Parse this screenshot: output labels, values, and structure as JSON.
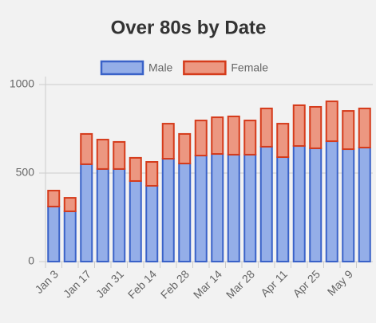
{
  "chart_data": {
    "type": "stacked_bar",
    "title": "Over 80s by Date",
    "categories": [
      "Jan 3",
      null,
      "Jan 17",
      null,
      "Jan 31",
      null,
      "Feb 14",
      null,
      "Feb 28",
      null,
      "Mar 14",
      null,
      "Mar 28",
      null,
      "Apr 11",
      null,
      "Apr 25",
      null,
      "May 9",
      null
    ],
    "series": [
      {
        "name": "Male",
        "color": "#94aee8",
        "border": "#3a62c8",
        "values": [
          311,
          284,
          550,
          523,
          523,
          455,
          428,
          581,
          554,
          599,
          608,
          604,
          604,
          649,
          590,
          653,
          640,
          680,
          635,
          644
        ]
      },
      {
        "name": "Female",
        "color": "#ec9781",
        "border": "#d53b1b",
        "values": [
          90,
          76,
          171,
          166,
          153,
          131,
          135,
          198,
          167,
          198,
          207,
          216,
          193,
          216,
          189,
          230,
          234,
          225,
          216,
          221
        ]
      }
    ],
    "ylim": [
      0,
      1000
    ],
    "yticks": [
      0,
      500,
      1000
    ],
    "grid": true,
    "legend": "top"
  }
}
